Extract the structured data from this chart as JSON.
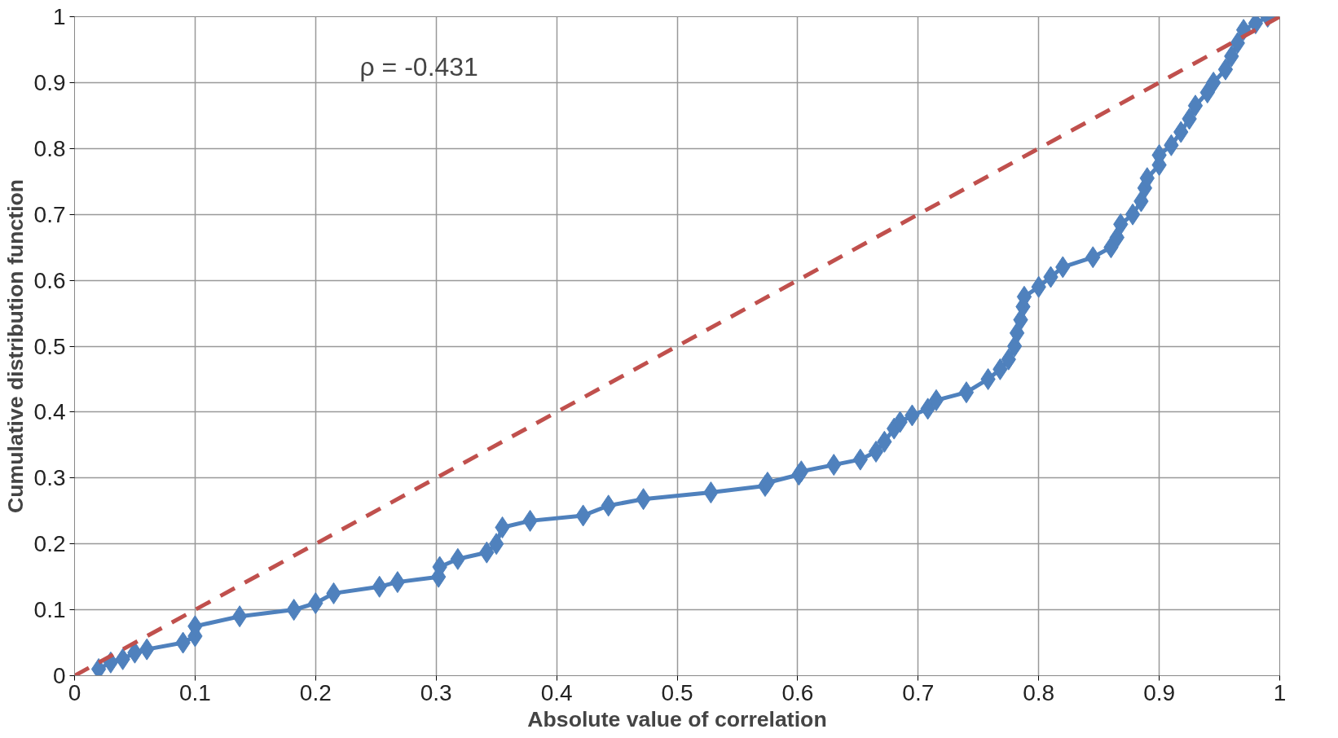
{
  "chart_data": {
    "type": "line",
    "xlabel": "Absolute value of correlation",
    "ylabel": "Cumulative distribution function",
    "annotations": [
      "ρ = -0.431"
    ],
    "xlim": [
      0,
      1
    ],
    "ylim": [
      0,
      1
    ],
    "xticks": [
      0,
      0.1,
      0.2,
      0.3,
      0.4,
      0.5,
      0.6,
      0.7,
      0.8,
      0.9,
      1
    ],
    "yticks": [
      0,
      0.1,
      0.2,
      0.3,
      0.4,
      0.5,
      0.6,
      0.7,
      0.8,
      0.9,
      1
    ],
    "grid": true,
    "series": [
      {
        "color": "#4f81bd",
        "marker": "diamond",
        "line_style": "solid",
        "x": [
          0.02,
          0.03,
          0.04,
          0.05,
          0.06,
          0.09,
          0.1,
          0.1,
          0.137,
          0.182,
          0.2,
          0.215,
          0.253,
          0.268,
          0.302,
          0.303,
          0.318,
          0.342,
          0.35,
          0.355,
          0.378,
          0.422,
          0.443,
          0.472,
          0.528,
          0.573,
          0.575,
          0.601,
          0.603,
          0.63,
          0.652,
          0.665,
          0.672,
          0.68,
          0.685,
          0.695,
          0.708,
          0.715,
          0.74,
          0.758,
          0.768,
          0.775,
          0.78,
          0.782,
          0.785,
          0.787,
          0.788,
          0.8,
          0.81,
          0.82,
          0.845,
          0.86,
          0.865,
          0.868,
          0.878,
          0.885,
          0.888,
          0.89,
          0.9,
          0.9,
          0.91,
          0.918,
          0.925,
          0.93,
          0.94,
          0.945,
          0.955,
          0.96,
          0.965,
          0.97,
          0.98,
          0.99
        ],
        "values": [
          0.01,
          0.02,
          0.025,
          0.035,
          0.04,
          0.05,
          0.06,
          0.075,
          0.09,
          0.1,
          0.11,
          0.125,
          0.135,
          0.142,
          0.15,
          0.165,
          0.177,
          0.187,
          0.2,
          0.225,
          0.235,
          0.243,
          0.258,
          0.268,
          0.278,
          0.288,
          0.293,
          0.305,
          0.31,
          0.32,
          0.328,
          0.34,
          0.355,
          0.375,
          0.385,
          0.395,
          0.405,
          0.418,
          0.43,
          0.45,
          0.465,
          0.48,
          0.5,
          0.52,
          0.54,
          0.56,
          0.575,
          0.59,
          0.605,
          0.62,
          0.635,
          0.65,
          0.665,
          0.685,
          0.7,
          0.72,
          0.74,
          0.755,
          0.775,
          0.79,
          0.805,
          0.825,
          0.845,
          0.865,
          0.885,
          0.9,
          0.92,
          0.94,
          0.96,
          0.98,
          0.99,
          1.0
        ]
      },
      {
        "color": "#c0504d",
        "marker": "none",
        "line_style": "dashed",
        "x": [
          0,
          1
        ],
        "values": [
          0,
          1
        ]
      }
    ]
  }
}
